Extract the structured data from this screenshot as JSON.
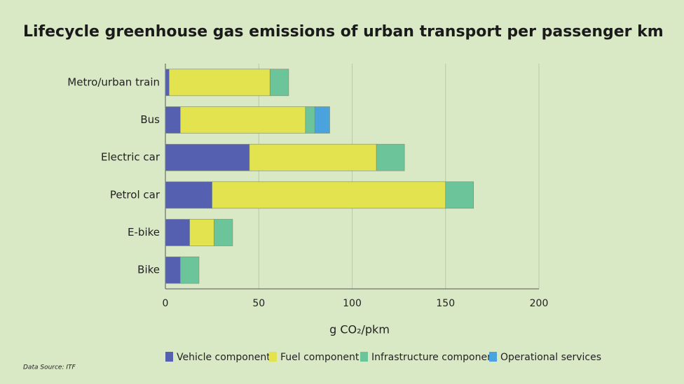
{
  "chart_data": {
    "type": "stacked_barh",
    "title": "Lifecycle greenhouse gas emissions of urban transport per passenger km",
    "categories": [
      "Metro/urban train",
      "Bus",
      "Electric car",
      "Petrol car",
      "E-bike",
      "Bike"
    ],
    "series": [
      {
        "name": "Vehicle component",
        "color": "#5560b0",
        "values": [
          2,
          8,
          45,
          25,
          13,
          8
        ]
      },
      {
        "name": "Fuel component",
        "color": "#e3e34f",
        "values": [
          54,
          67,
          68,
          125,
          13,
          0
        ]
      },
      {
        "name": "Infrastructure component",
        "color": "#6cc59a",
        "values": [
          10,
          5,
          15,
          15,
          10,
          10
        ]
      },
      {
        "name": "Operational services",
        "color": "#4aa3dc",
        "values": [
          0,
          8,
          0,
          0,
          0,
          0
        ]
      }
    ],
    "xlim": [
      0,
      200
    ],
    "xticks": [
      0,
      50,
      100,
      150,
      200
    ],
    "xlabel": "g CO₂/pkm",
    "grid": true,
    "legend": "bottom",
    "source": "Data Source: ITF"
  }
}
